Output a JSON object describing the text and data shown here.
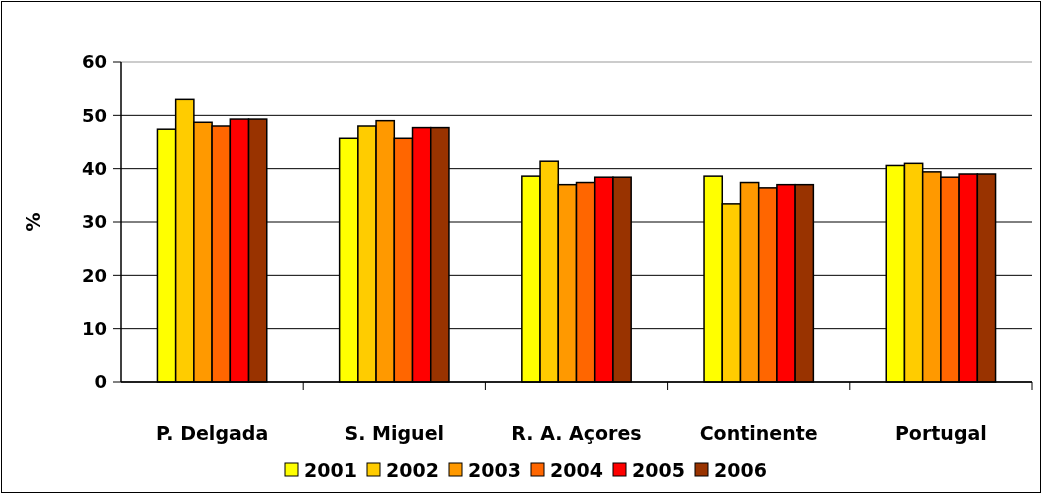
{
  "chart_data": {
    "type": "bar",
    "ylabel": "%",
    "categories": [
      "P. Delgada",
      "S. Miguel",
      "R. A. Açores",
      "Continente",
      "Portugal"
    ],
    "series": [
      {
        "name": "2001",
        "color": "#ffff00",
        "values": [
          47.4,
          45.7,
          38.6,
          38.6,
          40.6
        ]
      },
      {
        "name": "2002",
        "color": "#ffcc00",
        "values": [
          53.0,
          48.0,
          41.4,
          33.4,
          41.0
        ]
      },
      {
        "name": "2003",
        "color": "#ff9900",
        "values": [
          48.7,
          49.0,
          37.0,
          37.4,
          39.4
        ]
      },
      {
        "name": "2004",
        "color": "#ff6600",
        "values": [
          48.0,
          45.7,
          37.4,
          36.4,
          38.4
        ]
      },
      {
        "name": "2005",
        "color": "#ff0000",
        "values": [
          49.3,
          47.7,
          38.4,
          37.0,
          39.0
        ]
      },
      {
        "name": "2006",
        "color": "#993300",
        "values": [
          49.3,
          47.7,
          38.4,
          37.0,
          39.0
        ]
      }
    ],
    "ylim": [
      0,
      60
    ],
    "yticks": [
      0,
      10,
      20,
      30,
      40,
      50,
      60
    ],
    "grid": "y",
    "legend": "bottom"
  }
}
